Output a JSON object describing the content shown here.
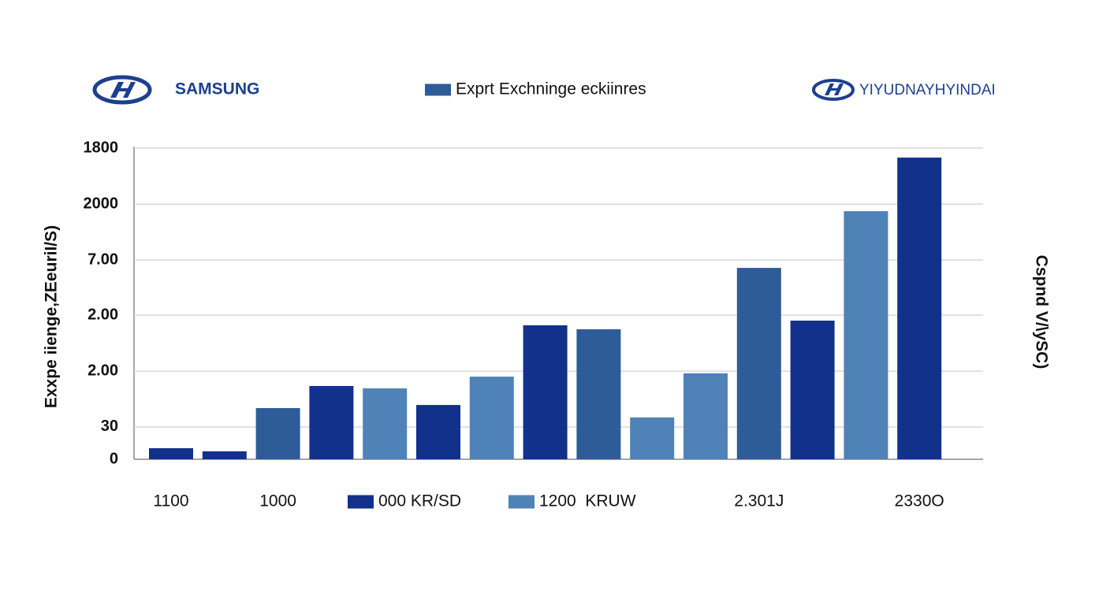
{
  "chart_data": {
    "type": "bar",
    "title": "Exprt Exchninge eckiinres",
    "brands": [
      "SAMSUNG",
      "YIYUDNAYHYINDAI"
    ],
    "y_label": "Exxpe iienge,ZEeuriI/S)",
    "y2_label": "Cspnd V/\\ySC)",
    "categories": [
      "1100",
      null,
      "1000",
      null,
      null,
      null,
      null,
      null,
      null,
      null,
      null,
      "2.301J",
      null,
      null,
      "2330O"
    ],
    "series": [
      {
        "name": "000 KR/SD",
        "color": "#12318a",
        "values": [
          64,
          46,
          null,
          424,
          null,
          314,
          null,
          775,
          null,
          null,
          null,
          null,
          802,
          null,
          1745
        ]
      },
      {
        "name": "1200  KRUW",
        "color": "#4f83b8",
        "values": [
          null,
          null,
          null,
          null,
          410,
          null,
          478,
          null,
          null,
          242,
          497,
          null,
          null,
          1435,
          null
        ]
      },
      {
        "name": "Exprt Exchninge eckiinres",
        "color": "#2d5c98",
        "values": [
          null,
          null,
          296,
          null,
          null,
          null,
          null,
          null,
          752,
          null,
          null,
          1107,
          null,
          null,
          null
        ]
      }
    ],
    "ylim": [
      0,
      1800
    ],
    "yticks": [
      0,
      {
        "value": 187,
        "label": "30"
      },
      {
        "value": 510,
        "label": "2.00"
      },
      {
        "value": 834,
        "label": "2.00"
      },
      {
        "value": 1153,
        "label": "7.00"
      },
      {
        "value": 1476,
        "label": "2000"
      },
      1800
    ],
    "grid": true
  }
}
